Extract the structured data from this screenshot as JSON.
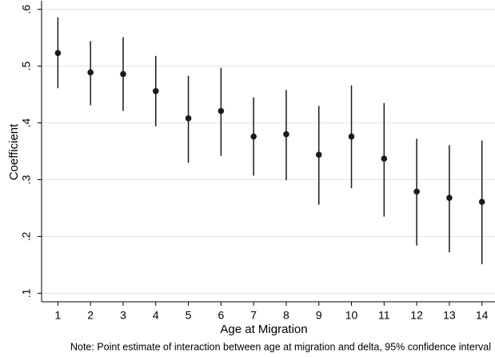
{
  "chart_data": {
    "type": "errorbar",
    "x": [
      1,
      2,
      3,
      4,
      5,
      6,
      7,
      8,
      9,
      10,
      11,
      12,
      13,
      14
    ],
    "values": [
      0.523,
      0.489,
      0.486,
      0.456,
      0.408,
      0.421,
      0.376,
      0.38,
      0.344,
      0.376,
      0.337,
      0.279,
      0.268,
      0.261
    ],
    "lower": [
      0.461,
      0.431,
      0.421,
      0.394,
      0.33,
      0.342,
      0.307,
      0.299,
      0.256,
      0.285,
      0.235,
      0.184,
      0.172,
      0.151
    ],
    "upper": [
      0.586,
      0.544,
      0.551,
      0.518,
      0.483,
      0.497,
      0.445,
      0.458,
      0.43,
      0.466,
      0.435,
      0.372,
      0.361,
      0.369
    ],
    "color": "#1a1a1a",
    "xlim": [
      0.5,
      14.4
    ],
    "xticks": [
      1,
      2,
      3,
      4,
      5,
      6,
      7,
      8,
      9,
      10,
      11,
      12,
      13,
      14
    ],
    "ylim": [
      0.085,
      0.615
    ],
    "yticks": [
      {
        "value": 0.1,
        "label": ".1"
      },
      {
        "value": 0.2,
        "label": ".2"
      },
      {
        "value": 0.3,
        "label": ".3"
      },
      {
        "value": 0.4,
        "label": ".4"
      },
      {
        "value": 0.5,
        "label": ".5"
      },
      {
        "value": 0.6,
        "label": ".6"
      }
    ],
    "grid": true,
    "xlabel": "Age at Migration",
    "ylabel": "Coefficient",
    "note": "Note: Point estimate of interaction between age at migration and delta, 95% confidence interval"
  }
}
